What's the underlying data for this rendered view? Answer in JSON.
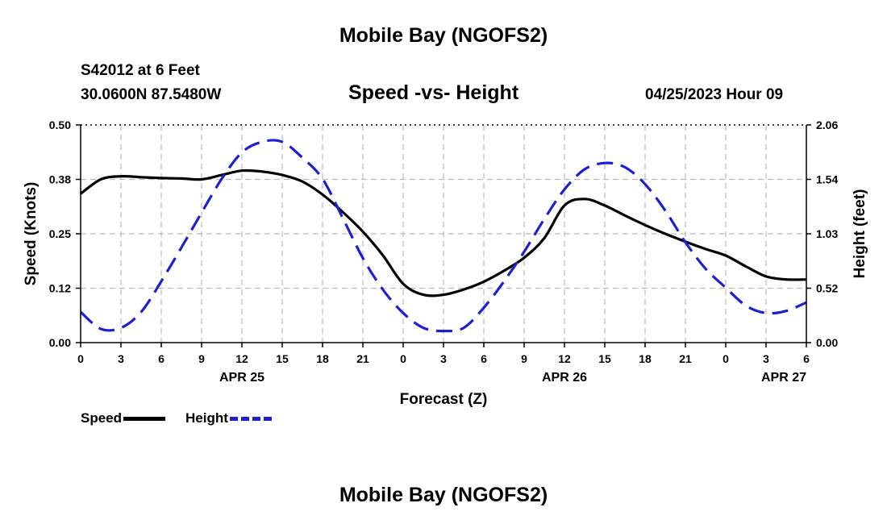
{
  "header": {
    "title": "Mobile Bay (NGOFS2)",
    "station": "S42012 at 6 Feet",
    "coords": "30.0600N  87.5480W",
    "subtitle": "Speed -vs- Height",
    "datetime": "04/25/2023 Hour 09"
  },
  "footer": {
    "title": "Mobile Bay (NGOFS2)"
  },
  "legend": {
    "speed_label": "Speed",
    "height_label": "Height"
  },
  "chart_data": {
    "type": "line",
    "xlabel": "Forecast (Z)",
    "ylabel": "Speed (Knots)",
    "y2label": "Height (feet)",
    "xlim": [
      0,
      54
    ],
    "ylim": [
      0,
      0.5
    ],
    "y2lim": [
      0,
      2.06
    ],
    "x_ticks": [
      0,
      3,
      6,
      9,
      12,
      15,
      18,
      21,
      24,
      27,
      30,
      33,
      36,
      39,
      42,
      45,
      48,
      51,
      54
    ],
    "x_tick_labels": [
      "0",
      "3",
      "6",
      "9",
      "12",
      "15",
      "18",
      "21",
      "0",
      "3",
      "6",
      "9",
      "12",
      "15",
      "18",
      "21",
      "0",
      "3",
      "6"
    ],
    "y_ticks": [
      0,
      0.125,
      0.25,
      0.375,
      0.5
    ],
    "y_tick_labels": [
      "0.00",
      "0.12",
      "0.25",
      "0.38",
      "0.50"
    ],
    "y2_ticks": [
      0,
      0.515,
      1.03,
      1.545,
      2.06
    ],
    "y2_tick_labels": [
      "0.00",
      "0.52",
      "1.03",
      "1.54",
      "2.06"
    ],
    "date_labels": [
      {
        "x": 12,
        "label": "APR 25"
      },
      {
        "x": 36,
        "label": "APR 26"
      },
      {
        "x": 54,
        "label": "APR 27"
      }
    ],
    "grid": true,
    "legend_position": "bottom-left",
    "colors": {
      "speed": "#000000",
      "height": "#1f1fd0",
      "grid": "#bbbbbb"
    },
    "series": [
      {
        "name": "Speed",
        "axis": "left",
        "x": [
          0,
          1.5,
          3,
          4.5,
          6,
          7.5,
          9,
          10.5,
          12,
          13.5,
          15,
          16.5,
          18,
          19.5,
          21,
          22.5,
          24,
          25.5,
          27,
          28.5,
          30,
          31.5,
          33,
          34.5,
          36,
          37.5,
          39,
          40.5,
          42,
          43.5,
          45,
          46.5,
          48,
          49.5,
          51,
          52.5,
          54
        ],
        "values": [
          0.342,
          0.375,
          0.382,
          0.38,
          0.378,
          0.377,
          0.375,
          0.385,
          0.395,
          0.393,
          0.385,
          0.37,
          0.34,
          0.3,
          0.255,
          0.2,
          0.135,
          0.11,
          0.11,
          0.122,
          0.14,
          0.165,
          0.195,
          0.24,
          0.315,
          0.33,
          0.315,
          0.292,
          0.27,
          0.25,
          0.232,
          0.215,
          0.2,
          0.175,
          0.152,
          0.145,
          0.145
        ]
      },
      {
        "name": "Height",
        "axis": "right",
        "x": [
          0,
          1.5,
          3,
          4.5,
          6,
          7.5,
          9,
          10.5,
          12,
          13.5,
          15,
          16.5,
          18,
          19.5,
          21,
          22.5,
          24,
          25.5,
          27,
          28.5,
          30,
          31.5,
          33,
          34.5,
          36,
          37.5,
          39,
          40.5,
          42,
          43.5,
          45,
          46.5,
          48,
          49.5,
          51,
          52.5,
          54
        ],
        "values": [
          0.29,
          0.13,
          0.14,
          0.29,
          0.58,
          0.9,
          1.23,
          1.55,
          1.8,
          1.9,
          1.9,
          1.75,
          1.55,
          1.18,
          0.8,
          0.5,
          0.28,
          0.14,
          0.11,
          0.14,
          0.33,
          0.58,
          0.86,
          1.17,
          1.45,
          1.64,
          1.7,
          1.66,
          1.5,
          1.25,
          0.95,
          0.7,
          0.52,
          0.35,
          0.28,
          0.3,
          0.38
        ]
      }
    ]
  }
}
